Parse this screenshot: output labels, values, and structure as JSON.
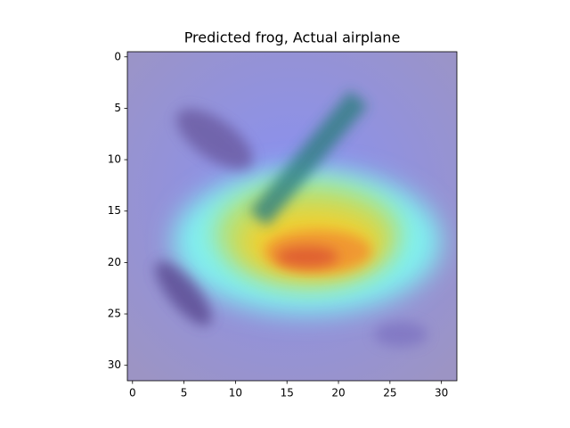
{
  "chart_data": {
    "type": "image",
    "title": "Predicted frog, Actual airplane",
    "xlim": [
      -0.5,
      31.5
    ],
    "ylim": [
      31.5,
      -0.5
    ],
    "xticks": [
      0,
      5,
      10,
      15,
      20,
      25,
      30
    ],
    "yticks": [
      0,
      5,
      10,
      15,
      20,
      25,
      30
    ]
  }
}
